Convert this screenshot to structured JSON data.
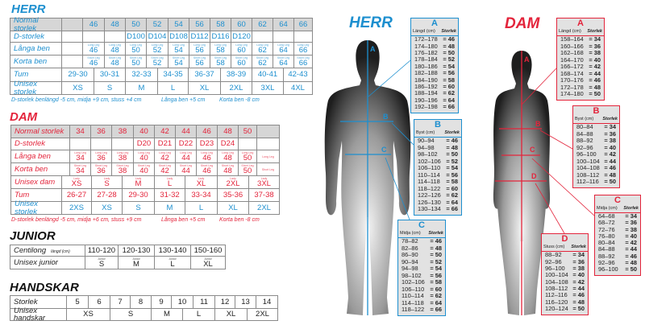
{
  "colors": {
    "herr": "#1d8fcf",
    "dam": "#e3243b",
    "header_bg": "#d6d6d6",
    "box_bg": "#e2e2e2"
  },
  "herr": {
    "title": "HERR",
    "normal": {
      "label": "Normal storlek",
      "values": [
        "46",
        "48",
        "50",
        "52",
        "54",
        "56",
        "58",
        "60",
        "62",
        "64",
        "66"
      ]
    },
    "d": {
      "label": "D-storlek",
      "values": [
        "",
        "",
        "D100",
        "D104",
        "D108",
        "D112",
        "D116",
        "D120",
        "",
        "",
        ""
      ]
    },
    "langa": {
      "label": "Långa ben",
      "tag": "Long Leg",
      "values": [
        "46",
        "48",
        "50",
        "52",
        "54",
        "56",
        "58",
        "60",
        "62",
        "64",
        "66"
      ]
    },
    "korta": {
      "label": "Korta ben",
      "tag": "Short Leg",
      "values": [
        "46",
        "48",
        "50",
        "52",
        "54",
        "56",
        "58",
        "60",
        "62",
        "64",
        "66"
      ]
    },
    "tum": {
      "label": "Tum",
      "values": [
        "29-30",
        "30-31",
        "32-33",
        "34-35",
        "36-37",
        "38-39",
        "40-41",
        "42-43"
      ]
    },
    "unisex": {
      "label": "Unisex storlek",
      "values": [
        "XS",
        "S",
        "M",
        "L",
        "XL",
        "2XL",
        "3XL",
        "4XL"
      ]
    },
    "notes": [
      "D-storlek benlängd -5 cm, midja +9 cm, stuss +4 cm",
      "Långa ben +5 cm",
      "Korta ben -8 cm"
    ]
  },
  "dam": {
    "title": "DAM",
    "normal": {
      "label": "Normal storlek",
      "values": [
        "34",
        "36",
        "38",
        "40",
        "42",
        "44",
        "46",
        "48",
        "50",
        ""
      ]
    },
    "d": {
      "label": "D-storlek",
      "values": [
        "",
        "",
        "",
        "D20",
        "D21",
        "D22",
        "D23",
        "D24",
        "",
        ""
      ]
    },
    "langa": {
      "label": "Långa ben",
      "tag": "Long Leg",
      "values": [
        "34",
        "36",
        "38",
        "40",
        "42",
        "44",
        "46",
        "48",
        "50",
        ""
      ]
    },
    "korta": {
      "label": "Korta ben",
      "tag": "Short Leg",
      "values": [
        "34",
        "36",
        "38",
        "40",
        "42",
        "44",
        "46",
        "48",
        "50",
        ""
      ]
    },
    "unisex_dam": {
      "label": "Unisex dam",
      "tag": "Lady",
      "values": [
        "XS",
        "S",
        "M",
        "L",
        "XL",
        "2XL",
        "3XL"
      ]
    },
    "tum": {
      "label": "Tum",
      "values": [
        "26-27",
        "27-28",
        "29-30",
        "31-32",
        "33-34",
        "35-36",
        "37-38"
      ]
    },
    "unisex": {
      "label": "Unisex storlek",
      "values": [
        "2XS",
        "XS",
        "S",
        "M",
        "L",
        "XL",
        "2XL"
      ]
    },
    "notes": [
      "D-storlek benlängd -5 cm, midja +6 cm, stuss +9 cm",
      "Långa ben +5 cm",
      "Korta ben -8 cm"
    ]
  },
  "junior": {
    "title": "JUNIOR",
    "centilong": {
      "label": "Centilong",
      "unit": "längd (cm)",
      "values": [
        "110-120",
        "120-130",
        "130-140",
        "150-160"
      ]
    },
    "unisex": {
      "label": "Unisex junior",
      "tag": "Junior",
      "values": [
        "S",
        "M",
        "L",
        "XL"
      ]
    }
  },
  "handskar": {
    "title": "HANDSKAR",
    "storlek": {
      "label": "Storlek",
      "values": [
        "5",
        "6",
        "7",
        "8",
        "9",
        "10",
        "11",
        "12",
        "13",
        "14"
      ]
    },
    "unisex": {
      "label": "Unisex handskar",
      "values": [
        "XS",
        "S",
        "M",
        "L",
        "XL",
        "2XL"
      ]
    }
  },
  "figures": {
    "herr": {
      "title": "HERR",
      "letters": [
        "A",
        "B",
        "C"
      ],
      "boxes": [
        {
          "letter": "A",
          "measure": "Längd (cm)",
          "size_label": "Storlek",
          "rows": [
            [
              "172–178",
              "= 46"
            ],
            [
              "174–180",
              "= 48"
            ],
            [
              "176–182",
              "= 50"
            ],
            [
              "178–184",
              "= 52"
            ],
            [
              "180–186",
              "= 54"
            ],
            [
              "182–188",
              "= 56"
            ],
            [
              "184–190",
              "= 58"
            ],
            [
              "186–192",
              "= 60"
            ],
            [
              "188–194",
              "= 62"
            ],
            [
              "190–196",
              "= 64"
            ],
            [
              "192–198",
              "= 66"
            ]
          ]
        },
        {
          "letter": "B",
          "measure": "Byst (cm)",
          "size_label": "Storlek",
          "rows": [
            [
              "90–94",
              "= 46"
            ],
            [
              "94–98",
              "= 48"
            ],
            [
              "98–102",
              "= 50"
            ],
            [
              "102–106",
              "= 52"
            ],
            [
              "106–110",
              "= 54"
            ],
            [
              "110–114",
              "= 56"
            ],
            [
              "114–118",
              "= 58"
            ],
            [
              "118–122",
              "= 60"
            ],
            [
              "122–126",
              "= 62"
            ],
            [
              "126–130",
              "= 64"
            ],
            [
              "130–134",
              "= 66"
            ]
          ]
        },
        {
          "letter": "C",
          "measure": "Midja (cm)",
          "size_label": "Storlek",
          "rows": [
            [
              "78–82",
              "= 46"
            ],
            [
              "82–86",
              "= 48"
            ],
            [
              "86–90",
              "= 50"
            ],
            [
              "90–94",
              "= 52"
            ],
            [
              "94–98",
              "= 54"
            ],
            [
              "98–102",
              "= 56"
            ],
            [
              "102–106",
              "= 58"
            ],
            [
              "106–110",
              "= 60"
            ],
            [
              "110–114",
              "= 62"
            ],
            [
              "114–118",
              "= 64"
            ],
            [
              "118–122",
              "= 66"
            ]
          ]
        }
      ]
    },
    "dam": {
      "title": "DAM",
      "letters": [
        "A",
        "B",
        "C",
        "D"
      ],
      "boxes": [
        {
          "letter": "A",
          "measure": "Längd (cm)",
          "size_label": "Storlek",
          "rows": [
            [
              "158–164",
              "= 34"
            ],
            [
              "160–166",
              "= 36"
            ],
            [
              "162–168",
              "= 38"
            ],
            [
              "164–170",
              "= 40"
            ],
            [
              "166–172",
              "= 42"
            ],
            [
              "168–174",
              "= 44"
            ],
            [
              "170–176",
              "= 46"
            ],
            [
              "172–178",
              "= 48"
            ],
            [
              "174–180",
              "= 50"
            ]
          ]
        },
        {
          "letter": "B",
          "measure": "Byst (cm)",
          "size_label": "Storlek",
          "rows": [
            [
              "80–84",
              "= 34"
            ],
            [
              "84–88",
              "= 36"
            ],
            [
              "88–92",
              "= 38"
            ],
            [
              "92–96",
              "= 40"
            ],
            [
              "96–100",
              "= 42"
            ],
            [
              "100–104",
              "= 44"
            ],
            [
              "104–108",
              "= 46"
            ],
            [
              "108–112",
              "= 48"
            ],
            [
              "112–116",
              "= 50"
            ]
          ]
        },
        {
          "letter": "C",
          "measure": "Midja (cm)",
          "size_label": "Storlek",
          "rows": [
            [
              "64–68",
              "= 34"
            ],
            [
              "68–72",
              "= 36"
            ],
            [
              "72–76",
              "= 38"
            ],
            [
              "76–80",
              "= 40"
            ],
            [
              "80–84",
              "= 42"
            ],
            [
              "84–88",
              "= 44"
            ],
            [
              "88–92",
              "= 46"
            ],
            [
              "92–96",
              "= 48"
            ],
            [
              "96–100",
              "= 50"
            ]
          ]
        },
        {
          "letter": "D",
          "measure": "Stuss (cm)",
          "size_label": "Storlek",
          "rows": [
            [
              "88–92",
              "= 34"
            ],
            [
              "92–96",
              "= 36"
            ],
            [
              "96–100",
              "= 38"
            ],
            [
              "100–104",
              "= 40"
            ],
            [
              "104–108",
              "= 42"
            ],
            [
              "108–112",
              "= 44"
            ],
            [
              "112–116",
              "= 46"
            ],
            [
              "116–120",
              "= 48"
            ],
            [
              "120–124",
              "= 50"
            ]
          ]
        }
      ]
    }
  }
}
